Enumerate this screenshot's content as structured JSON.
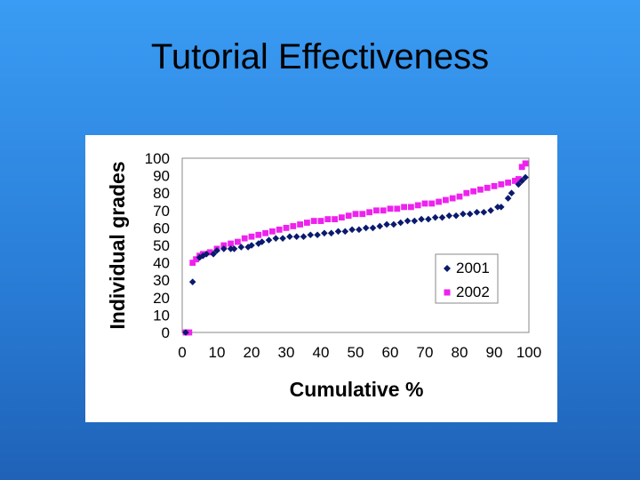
{
  "slide": {
    "title": "Tutorial Effectiveness"
  },
  "chart_data": {
    "type": "scatter",
    "title": "",
    "xlabel": "Cumulative %",
    "ylabel": "Individual grades",
    "xlim": [
      0,
      100
    ],
    "ylim": [
      0,
      100
    ],
    "xticks": [
      "0",
      "10",
      "20",
      "30",
      "40",
      "50",
      "60",
      "70",
      "80",
      "90",
      "100"
    ],
    "yticks": [
      "0",
      "10",
      "20",
      "30",
      "40",
      "50",
      "60",
      "70",
      "80",
      "90",
      "100"
    ],
    "grid": false,
    "legend_position": "right",
    "series": [
      {
        "name": "2001",
        "color": "#0a1a6e",
        "marker": "diamond",
        "points": [
          [
            1,
            0
          ],
          [
            3,
            29
          ],
          [
            5,
            43
          ],
          [
            6,
            44
          ],
          [
            7,
            45
          ],
          [
            9,
            45
          ],
          [
            10,
            47
          ],
          [
            12,
            48
          ],
          [
            14,
            48
          ],
          [
            15,
            48
          ],
          [
            17,
            49
          ],
          [
            19,
            49
          ],
          [
            20,
            50
          ],
          [
            22,
            51
          ],
          [
            23,
            52
          ],
          [
            25,
            53
          ],
          [
            27,
            54
          ],
          [
            29,
            54
          ],
          [
            31,
            55
          ],
          [
            33,
            55
          ],
          [
            35,
            55
          ],
          [
            37,
            56
          ],
          [
            39,
            56
          ],
          [
            41,
            57
          ],
          [
            43,
            57
          ],
          [
            45,
            58
          ],
          [
            47,
            58
          ],
          [
            49,
            59
          ],
          [
            51,
            59
          ],
          [
            53,
            60
          ],
          [
            55,
            60
          ],
          [
            57,
            61
          ],
          [
            59,
            62
          ],
          [
            61,
            62
          ],
          [
            63,
            63
          ],
          [
            65,
            64
          ],
          [
            67,
            64
          ],
          [
            69,
            65
          ],
          [
            71,
            65
          ],
          [
            73,
            66
          ],
          [
            75,
            66
          ],
          [
            77,
            67
          ],
          [
            79,
            67
          ],
          [
            81,
            68
          ],
          [
            83,
            68
          ],
          [
            85,
            69
          ],
          [
            87,
            69
          ],
          [
            89,
            70
          ],
          [
            91,
            72
          ],
          [
            92,
            72
          ],
          [
            94,
            77
          ],
          [
            95,
            80
          ],
          [
            97,
            85
          ],
          [
            98,
            87
          ],
          [
            99,
            89
          ]
        ]
      },
      {
        "name": "2002",
        "color": "#ee22ee",
        "marker": "square",
        "points": [
          [
            1,
            0
          ],
          [
            2,
            0
          ],
          [
            3,
            40
          ],
          [
            4,
            42
          ],
          [
            5,
            44
          ],
          [
            6,
            45
          ],
          [
            8,
            46
          ],
          [
            10,
            48
          ],
          [
            12,
            50
          ],
          [
            14,
            51
          ],
          [
            16,
            52
          ],
          [
            18,
            54
          ],
          [
            20,
            55
          ],
          [
            22,
            56
          ],
          [
            24,
            57
          ],
          [
            26,
            58
          ],
          [
            28,
            59
          ],
          [
            30,
            60
          ],
          [
            32,
            61
          ],
          [
            34,
            62
          ],
          [
            36,
            63
          ],
          [
            38,
            64
          ],
          [
            40,
            64
          ],
          [
            42,
            65
          ],
          [
            44,
            65
          ],
          [
            46,
            66
          ],
          [
            48,
            67
          ],
          [
            50,
            68
          ],
          [
            52,
            68
          ],
          [
            54,
            69
          ],
          [
            56,
            70
          ],
          [
            58,
            70
          ],
          [
            60,
            71
          ],
          [
            62,
            71
          ],
          [
            64,
            72
          ],
          [
            66,
            72
          ],
          [
            68,
            73
          ],
          [
            70,
            74
          ],
          [
            72,
            74
          ],
          [
            74,
            75
          ],
          [
            76,
            76
          ],
          [
            78,
            77
          ],
          [
            80,
            78
          ],
          [
            82,
            80
          ],
          [
            84,
            81
          ],
          [
            86,
            82
          ],
          [
            88,
            83
          ],
          [
            90,
            84
          ],
          [
            92,
            85
          ],
          [
            94,
            86
          ],
          [
            96,
            87
          ],
          [
            97,
            88
          ],
          [
            98,
            95
          ],
          [
            99,
            97
          ]
        ]
      }
    ]
  }
}
